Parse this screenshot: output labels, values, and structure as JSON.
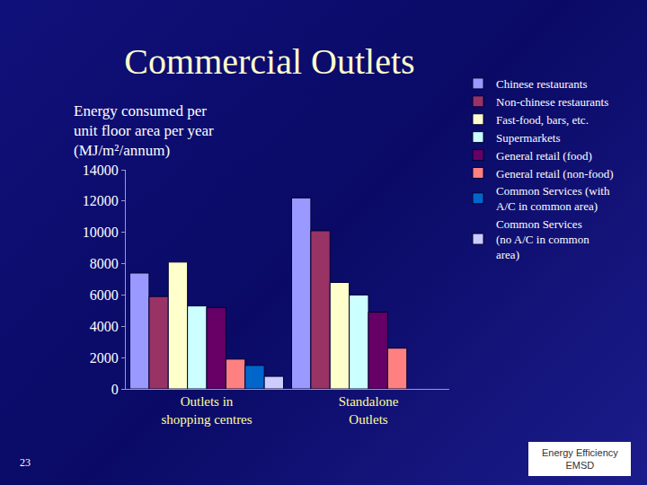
{
  "chart_data": {
    "type": "bar",
    "title": "Commercial Outlets",
    "y_label": "Energy consumed per\nunit floor area per year\n(MJ/m²/annum)",
    "categories": [
      "Outlets in\nshopping centres",
      "Standalone\nOutlets"
    ],
    "series": [
      {
        "name": "Chinese restaurants",
        "color": "#9999ff",
        "values": [
          7400,
          12200
        ]
      },
      {
        "name": "Non-chinese restaurants",
        "color": "#993366",
        "values": [
          5900,
          10100
        ]
      },
      {
        "name": "Fast-food, bars, etc.",
        "color": "#ffffcc",
        "values": [
          8100,
          6800
        ]
      },
      {
        "name": "Supermarkets",
        "color": "#ccffff",
        "values": [
          5300,
          6000
        ]
      },
      {
        "name": "General retail (food)",
        "color": "#660066",
        "values": [
          5200,
          4900
        ]
      },
      {
        "name": "General retail (non-food)",
        "color": "#ff8080",
        "values": [
          1900,
          2600
        ]
      },
      {
        "name": "Common Services (with\nA/C in common area)",
        "color": "#0066cc",
        "values": [
          1500,
          null
        ]
      },
      {
        "name": "Common Services\n(no A/C in common\narea)",
        "color": "#ccccff",
        "values": [
          800,
          null
        ]
      }
    ],
    "ylim": [
      0,
      14000
    ],
    "yticks": [
      0,
      2000,
      4000,
      6000,
      8000,
      10000,
      12000,
      14000
    ],
    "grid": false,
    "legend": "right"
  },
  "page_number": "23",
  "logo": [
    "Energy Efficiency",
    "EMSD"
  ]
}
